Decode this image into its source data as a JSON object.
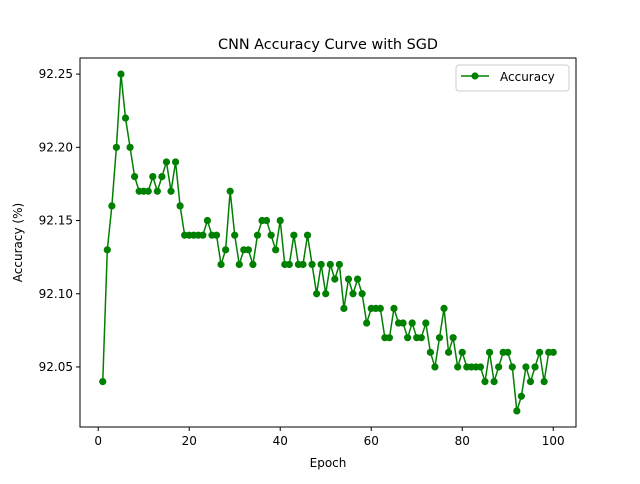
{
  "chart_data": {
    "type": "line",
    "title": "CNN Accuracy Curve with SGD",
    "xlabel": "Epoch",
    "ylabel": "Accuracy (%)",
    "xlim": [
      -4,
      105
    ],
    "ylim": [
      92.009,
      92.261
    ],
    "xticks": [
      0,
      20,
      40,
      60,
      80,
      100
    ],
    "xtick_labels": [
      "0",
      "20",
      "40",
      "60",
      "80",
      "100"
    ],
    "yticks": [
      92.05,
      92.1,
      92.15,
      92.2,
      92.25
    ],
    "ytick_labels": [
      "92.05",
      "92.10",
      "92.15",
      "92.20",
      "92.25"
    ],
    "grid": false,
    "legend": {
      "position": "top-right",
      "entries": [
        "Accuracy"
      ]
    },
    "series": [
      {
        "name": "Accuracy",
        "color": "#008000",
        "marker": "circle",
        "x": [
          1,
          2,
          3,
          4,
          5,
          6,
          7,
          8,
          9,
          10,
          11,
          12,
          13,
          14,
          15,
          16,
          17,
          18,
          19,
          20,
          21,
          22,
          23,
          24,
          25,
          26,
          27,
          28,
          29,
          30,
          31,
          32,
          33,
          34,
          35,
          36,
          37,
          38,
          39,
          40,
          41,
          42,
          43,
          44,
          45,
          46,
          47,
          48,
          49,
          50,
          51,
          52,
          53,
          54,
          55,
          56,
          57,
          58,
          59,
          60,
          61,
          62,
          63,
          64,
          65,
          66,
          67,
          68,
          69,
          70,
          71,
          72,
          73,
          74,
          75,
          76,
          77,
          78,
          79,
          80,
          81,
          82,
          83,
          84,
          85,
          86,
          87,
          88,
          89,
          90,
          91,
          92,
          93,
          94,
          95,
          96,
          97,
          98,
          99,
          100
        ],
        "values": [
          92.04,
          92.13,
          92.16,
          92.2,
          92.25,
          92.22,
          92.2,
          92.18,
          92.17,
          92.17,
          92.17,
          92.18,
          92.17,
          92.18,
          92.19,
          92.17,
          92.19,
          92.16,
          92.14,
          92.14,
          92.14,
          92.14,
          92.14,
          92.15,
          92.14,
          92.14,
          92.12,
          92.13,
          92.17,
          92.14,
          92.12,
          92.13,
          92.13,
          92.12,
          92.14,
          92.15,
          92.15,
          92.14,
          92.13,
          92.15,
          92.12,
          92.12,
          92.14,
          92.12,
          92.12,
          92.14,
          92.12,
          92.1,
          92.12,
          92.1,
          92.12,
          92.11,
          92.12,
          92.09,
          92.11,
          92.1,
          92.11,
          92.1,
          92.08,
          92.09,
          92.09,
          92.09,
          92.07,
          92.07,
          92.09,
          92.08,
          92.08,
          92.07,
          92.08,
          92.07,
          92.07,
          92.08,
          92.06,
          92.05,
          92.07,
          92.09,
          92.06,
          92.07,
          92.05,
          92.06,
          92.05,
          92.05,
          92.05,
          92.05,
          92.04,
          92.06,
          92.04,
          92.05,
          92.06,
          92.06,
          92.05,
          92.02,
          92.03,
          92.05,
          92.04,
          92.05,
          92.06,
          92.04,
          92.06,
          92.06
        ]
      }
    ]
  }
}
